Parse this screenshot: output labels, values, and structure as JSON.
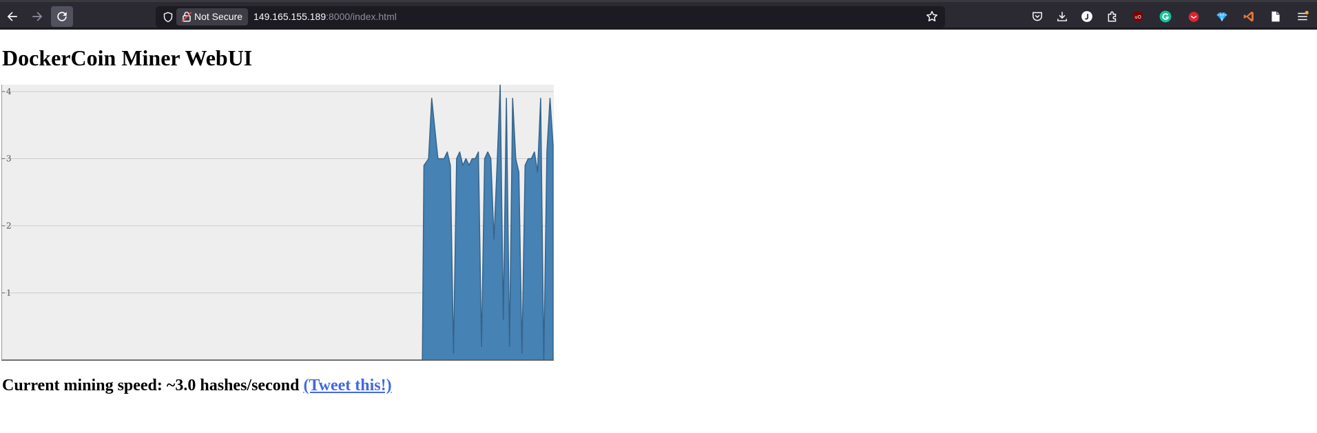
{
  "browser": {
    "security_label": "Not Secure",
    "url_host": "149.165.155.189",
    "url_rest": ":8000/index.html"
  },
  "page": {
    "title": "DockerCoin Miner WebUI",
    "speed_prefix": "Current mining speed: ~",
    "speed_value": "3.0",
    "speed_suffix": " hashes/second ",
    "tweet_label": "(Tweet this!)"
  },
  "chart_data": {
    "type": "area",
    "title": "",
    "xlabel": "",
    "ylabel": "",
    "ylim": [
      0,
      4.0
    ],
    "yticks": [
      "1",
      "2",
      "3",
      "4"
    ],
    "grid": true,
    "x": [
      0,
      135,
      135.5,
      137,
      138,
      140,
      142,
      143,
      144,
      145,
      146,
      147,
      148,
      149,
      150,
      151,
      152,
      153,
      154,
      155,
      156,
      157,
      158,
      159,
      160,
      161,
      162,
      163,
      164,
      165,
      166,
      167,
      168,
      169,
      170,
      171,
      172,
      173,
      174,
      175,
      176,
      177
    ],
    "values": [
      0,
      0,
      2.9,
      3.0,
      3.9,
      3.0,
      3.0,
      3.1,
      2.9,
      0.1,
      3.0,
      3.1,
      2.9,
      3.0,
      2.9,
      3.0,
      3.0,
      3.1,
      0.2,
      3.0,
      3.1,
      3.0,
      1.8,
      2.9,
      4.1,
      0.6,
      3.9,
      0.2,
      3.9,
      3.0,
      2.8,
      0.1,
      2.9,
      3.0,
      3.0,
      3.1,
      2.8,
      3.9,
      0.0,
      3.1,
      3.9,
      3.2
    ],
    "colors": {
      "fill": "#4682b4",
      "stroke": "#36638b",
      "background": "#eeeeee",
      "grid": "#cccccc"
    }
  }
}
